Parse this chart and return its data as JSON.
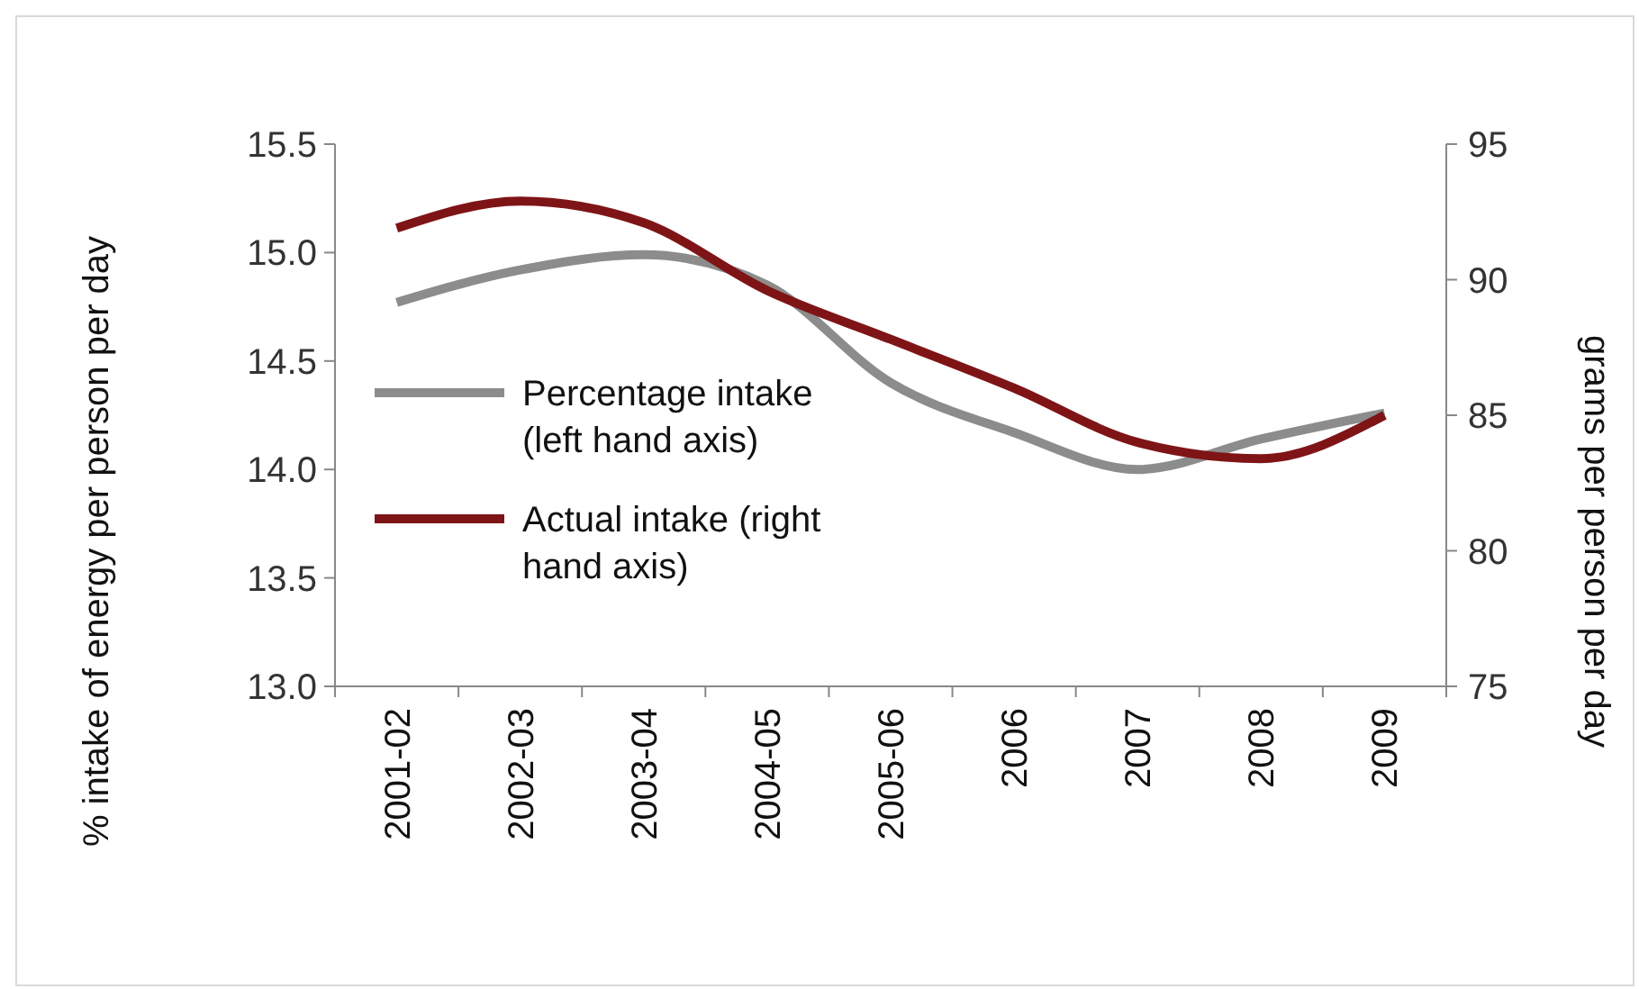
{
  "chart_data": {
    "type": "line",
    "ylabel": "% intake of energy per person per day",
    "y2label": "grams per person per day",
    "categories": [
      "2001-02",
      "2002-03",
      "2003-04",
      "2004-05",
      "2005-06",
      "2006",
      "2007",
      "2008",
      "2009"
    ],
    "series": [
      {
        "name": "Percentage intake (left hand axis)",
        "color": "#8c8c8c",
        "values": [
          14.77,
          14.92,
          14.99,
          14.85,
          14.4,
          14.17,
          14.0,
          14.14,
          14.26
        ]
      },
      {
        "name": "Actual intake (right hand axis)",
        "color": "#7f1416",
        "axis": "y2",
        "values": [
          91.9,
          92.9,
          92.1,
          89.6,
          87.8,
          86.0,
          84.0,
          83.4,
          85.0
        ]
      }
    ],
    "ylim": [
      13,
      15.5
    ],
    "yticks": [
      {
        "value": 13,
        "label": "13.0"
      },
      {
        "value": 13.5,
        "label": "13.5"
      },
      {
        "value": 14,
        "label": "14.0"
      },
      {
        "value": 14.5,
        "label": "14.5"
      },
      {
        "value": 15,
        "label": "15.0"
      },
      {
        "value": 15.5,
        "label": "15.5"
      }
    ],
    "y2lim": [
      75,
      95
    ],
    "y2ticks": [
      75,
      80,
      85,
      90,
      95
    ],
    "legend": "left",
    "grid": false,
    "marker": "none",
    "line_style": "solid"
  }
}
